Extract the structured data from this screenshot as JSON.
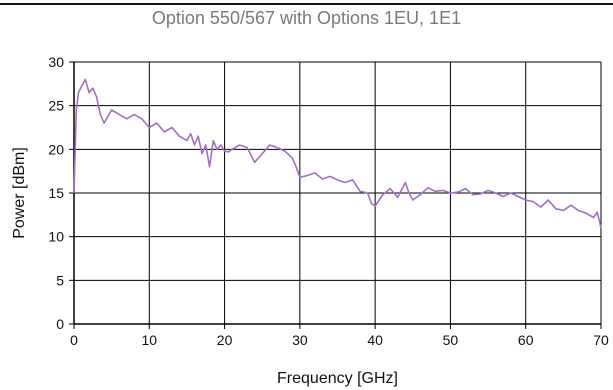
{
  "chart_data": {
    "type": "line",
    "title": "Option 550/567 with Options 1EU, 1E1",
    "xlabel": "Frequency [GHz]",
    "ylabel": "Power [dBm]",
    "xlim": [
      0,
      70
    ],
    "ylim": [
      0,
      30
    ],
    "xticks": [
      0,
      10,
      20,
      30,
      40,
      50,
      60,
      70
    ],
    "yticks": [
      0,
      5,
      10,
      15,
      20,
      25,
      30
    ],
    "grid": true,
    "line_color": "#a071c0",
    "series": [
      {
        "x": [
          0,
          0.1,
          0.3,
          0.6,
          1.0,
          1.5,
          2.0,
          2.5,
          3.0,
          3.5,
          4.0,
          5.0,
          6.0,
          7.0,
          8.0,
          9.0,
          10.0,
          11.0,
          12.0,
          13.0,
          14.0,
          15.0,
          15.5,
          16.0,
          16.5,
          17.0,
          17.5,
          18.0,
          18.5,
          19.0,
          19.5,
          20.0,
          20.5,
          21.0,
          22.0,
          23.0,
          24.0,
          25.0,
          26.0,
          27.0,
          28.0,
          29.0,
          29.5,
          30.0,
          31.0,
          32.0,
          33.0,
          34.0,
          35.0,
          36.0,
          37.0,
          38.0,
          39.0,
          39.5,
          40.0,
          41.0,
          42.0,
          43.0,
          44.0,
          44.5,
          45.0,
          46.0,
          47.0,
          48.0,
          49.0,
          50.0,
          51.0,
          52.0,
          53.0,
          54.0,
          55.0,
          56.0,
          57.0,
          58.0,
          59.0,
          60.0,
          61.0,
          62.0,
          63.0,
          64.0,
          65.0,
          66.0,
          67.0,
          68.0,
          69.0,
          69.5,
          70.0
        ],
        "values": [
          15.0,
          18.5,
          24.5,
          26.5,
          27.2,
          28.0,
          26.5,
          27.0,
          26.0,
          24.0,
          23.0,
          24.5,
          24.0,
          23.5,
          24.0,
          23.5,
          22.5,
          23.0,
          22.0,
          22.5,
          21.5,
          21.0,
          21.8,
          20.5,
          21.5,
          19.5,
          20.5,
          18.0,
          21.0,
          20.0,
          20.5,
          19.8,
          19.7,
          20.0,
          20.5,
          20.2,
          18.5,
          19.5,
          20.5,
          20.2,
          19.8,
          19.0,
          18.0,
          16.8,
          17.0,
          17.3,
          16.6,
          16.9,
          16.5,
          16.2,
          16.5,
          15.2,
          15.0,
          13.8,
          13.5,
          14.8,
          15.5,
          14.5,
          16.2,
          15.0,
          14.2,
          14.8,
          15.6,
          15.2,
          15.3,
          15.0,
          15.1,
          15.5,
          14.8,
          14.9,
          15.3,
          15.0,
          14.6,
          15.0,
          14.6,
          14.2,
          14.0,
          13.4,
          14.2,
          13.2,
          13.0,
          13.6,
          13.0,
          12.7,
          12.2,
          12.8,
          11.0
        ]
      }
    ]
  }
}
